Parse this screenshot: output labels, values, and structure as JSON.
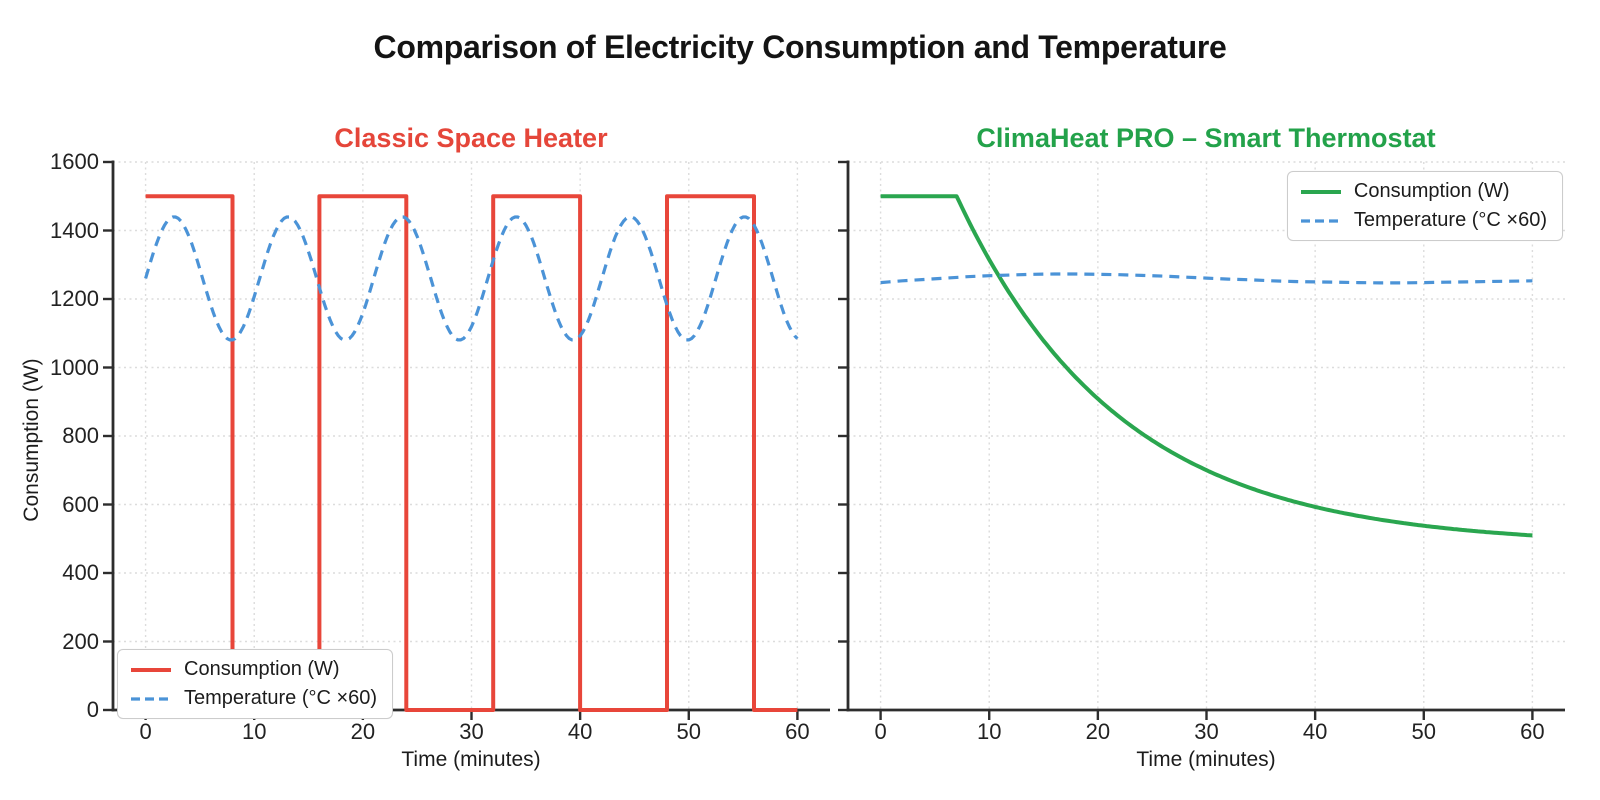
{
  "figure": {
    "title": "Comparison of Electricity Consumption and Temperature",
    "background": "#ffffff"
  },
  "colors": {
    "consumption_left": "#e8463a",
    "consumption_right": "#2aa64f",
    "temperature": "#4b93d7",
    "title_left": "#e5463a",
    "title_right": "#23a24a",
    "grid": "#dcdcdc",
    "spine": "#2d2d2d",
    "text": "#1c1c1c"
  },
  "axes": {
    "xlabel": "Time (minutes)",
    "ylabel": "Consumption (W)",
    "xticks": [
      0,
      10,
      20,
      30,
      40,
      50,
      60
    ],
    "yticks": [
      0,
      200,
      400,
      600,
      800,
      1000,
      1200,
      1400,
      1600
    ],
    "xlim": [
      -3,
      63
    ],
    "ylim": [
      0,
      1600
    ],
    "grid": true
  },
  "legend": {
    "consumption_label": "Consumption (W)",
    "temperature_label": "Temperature (°C ×60)"
  },
  "chart_data": [
    {
      "type": "line",
      "title": "Classic Space Heater",
      "title_color": "#e5463a",
      "xlabel": "Time (minutes)",
      "ylabel": "Consumption (W)",
      "xlim": [
        0,
        60
      ],
      "ylim": [
        0,
        1600
      ],
      "grid": true,
      "legend_position": "lower left",
      "series": [
        {
          "name": "Consumption (W)",
          "style": "solid",
          "color_key": "consumption_left",
          "description": "Square wave: 1500 W when on, 0 W when off, 16-min cycle (8 min on / 8 min off)",
          "x": [
            0,
            8,
            8,
            16,
            16,
            24,
            24,
            32,
            32,
            40,
            40,
            48,
            48,
            56,
            56,
            60
          ],
          "y": [
            1500,
            1500,
            0,
            0,
            1500,
            1500,
            0,
            0,
            1500,
            1500,
            0,
            0,
            1500,
            1500,
            0,
            0
          ]
        },
        {
          "name": "Temperature (°C ×60)",
          "style": "dashed",
          "color_key": "temperature",
          "description": "Room temperature oscillating 18-24 °C (shown ×60), ~10.5 min period",
          "model": {
            "type": "sine",
            "mean": 1260,
            "amplitude": 180,
            "period_min": 10.5,
            "t_start": 0,
            "t_end": 60
          },
          "x": [
            0,
            1,
            2,
            3,
            4,
            5,
            6,
            7,
            8,
            9,
            10,
            11,
            12,
            13,
            14,
            15,
            16,
            17,
            18,
            19,
            20,
            21,
            22,
            23,
            24,
            25,
            26,
            27,
            28,
            29,
            30,
            31,
            32,
            33,
            34,
            35,
            36,
            37,
            38,
            39,
            40,
            41,
            42,
            43,
            44,
            45,
            46,
            47,
            48,
            49,
            50,
            51,
            52,
            53,
            54,
            55,
            56,
            57,
            58,
            59,
            60
          ],
          "y": [
            1260,
            1361,
            1428,
            1435,
            1382,
            1287,
            1182,
            1104,
            1081,
            1119,
            1207,
            1313,
            1401,
            1439,
            1416,
            1338,
            1233,
            1138,
            1085,
            1092,
            1159,
            1260,
            1361,
            1428,
            1435,
            1382,
            1287,
            1182,
            1104,
            1081,
            1119,
            1207,
            1313,
            1401,
            1439,
            1416,
            1338,
            1233,
            1138,
            1085,
            1092,
            1159,
            1260,
            1361,
            1428,
            1435,
            1382,
            1287,
            1182,
            1104,
            1081,
            1119,
            1207,
            1313,
            1401,
            1439,
            1416,
            1338,
            1233,
            1138,
            1085
          ]
        }
      ]
    },
    {
      "type": "line",
      "title": "ClimaHeat PRO – Smart Thermostat",
      "title_color": "#23a24a",
      "xlabel": "Time (minutes)",
      "ylabel": "",
      "xlim": [
        0,
        60
      ],
      "ylim": [
        0,
        1600
      ],
      "grid": true,
      "legend_position": "upper right",
      "series": [
        {
          "name": "Consumption (W)",
          "style": "solid",
          "color_key": "consumption_right",
          "description": "1500 W warm-up until ~7 min, then exponential decay settling near 510 W",
          "model": {
            "type": "flat-exp",
            "flat_value": 1500,
            "flat_until_min": 7,
            "baseline": 480,
            "amplitude": 1020,
            "tau_min": 15,
            "t_start": 0,
            "t_end": 60
          },
          "x": [
            0,
            2,
            4,
            6,
            8,
            10,
            12,
            14,
            16,
            18,
            20,
            22,
            24,
            26,
            28,
            30,
            32,
            34,
            36,
            38,
            40,
            42,
            44,
            46,
            48,
            50,
            52,
            54,
            56,
            58,
            60
          ],
          "y": [
            1500,
            1500,
            1500,
            1500,
            1434,
            1315,
            1211,
            1120,
            1040,
            970,
            909,
            855,
            808,
            767,
            732,
            700,
            673,
            649,
            628,
            609,
            593,
            579,
            567,
            556,
            546,
            538,
            531,
            524,
            519,
            514,
            510
          ]
        },
        {
          "name": "Temperature (°C ×60)",
          "style": "dashed",
          "color_key": "temperature",
          "description": "Room temperature held nearly constant around 21 °C (shown ×60)",
          "x": [
            0,
            2,
            4,
            6,
            8,
            10,
            12,
            14,
            16,
            18,
            20,
            22,
            24,
            26,
            28,
            30,
            32,
            34,
            36,
            38,
            40,
            42,
            44,
            46,
            48,
            50,
            52,
            54,
            56,
            58,
            60
          ],
          "y": [
            1248,
            1253,
            1257,
            1261,
            1265,
            1268,
            1270,
            1272,
            1273,
            1273,
            1272,
            1271,
            1269,
            1267,
            1264,
            1261,
            1258,
            1256,
            1253,
            1251,
            1250,
            1249,
            1248,
            1247,
            1247,
            1248,
            1249,
            1250,
            1251,
            1252,
            1253
          ]
        }
      ]
    }
  ]
}
